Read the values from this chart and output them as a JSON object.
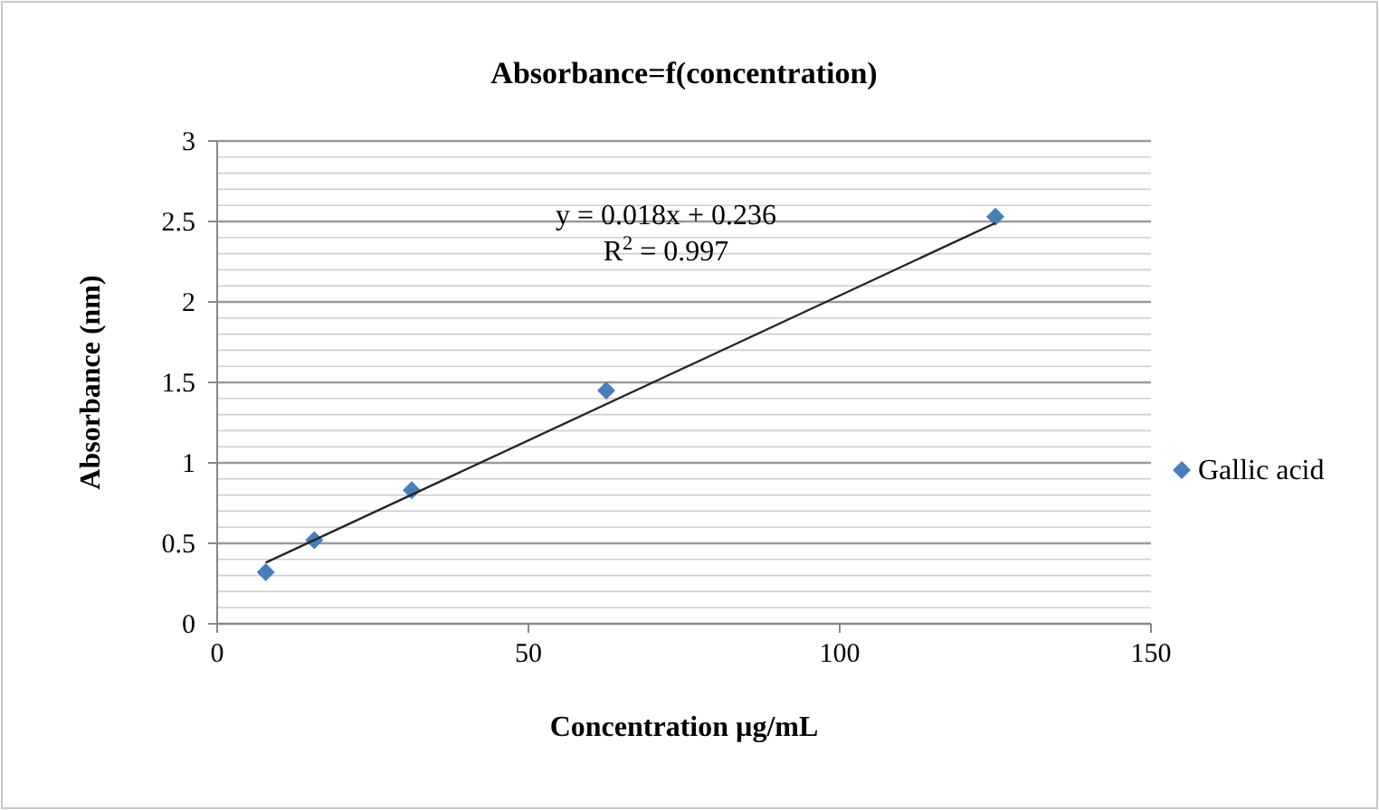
{
  "chart_data": {
    "type": "scatter",
    "title": "Absorbance=f(concentration)",
    "xlabel": "Concentration µg/mL",
    "ylabel": "Absorbance (nm)",
    "series": [
      {
        "name": "Gallic acid",
        "marker": "diamond",
        "color": "#4a7ebb",
        "x": [
          7.8,
          15.6,
          31.25,
          62.5,
          125
        ],
        "values": [
          0.32,
          0.52,
          0.83,
          1.45,
          2.53
        ]
      },
      {
        "type": "line",
        "color": "#262626",
        "x": [
          7.8,
          125
        ],
        "values": [
          0.38,
          2.49
        ]
      }
    ],
    "xlim": [
      0,
      150
    ],
    "xticks": [
      0,
      50,
      100,
      150
    ],
    "ylim": [
      0,
      3
    ],
    "yticks": [
      0,
      {
        "value": 0.1,
        "label": null
      },
      {
        "value": 0.2,
        "label": null
      },
      {
        "value": 0.3,
        "label": null
      },
      {
        "value": 0.4,
        "label": null
      },
      0.5,
      {
        "value": 0.6,
        "label": null
      },
      {
        "value": 0.7,
        "label": null
      },
      {
        "value": 0.8,
        "label": null
      },
      {
        "value": 0.9,
        "label": null
      },
      1,
      {
        "value": 1.1,
        "label": null
      },
      {
        "value": 1.2,
        "label": null
      },
      {
        "value": 1.3,
        "label": null
      },
      {
        "value": 1.4,
        "label": null
      },
      1.5,
      {
        "value": 1.6,
        "label": null
      },
      {
        "value": 1.7,
        "label": null
      },
      {
        "value": 1.8,
        "label": null
      },
      {
        "value": 1.9,
        "label": null
      },
      2,
      {
        "value": 2.1,
        "label": null
      },
      {
        "value": 2.2,
        "label": null
      },
      {
        "value": 2.3,
        "label": null
      },
      {
        "value": 2.4,
        "label": null
      },
      2.5,
      {
        "value": 2.6,
        "label": null
      },
      {
        "value": 2.7,
        "label": null
      },
      {
        "value": 2.8,
        "label": null
      },
      {
        "value": 2.9,
        "label": null
      },
      3
    ],
    "grid": "y",
    "legend": "right",
    "annotations": [
      "y = 0.018x + 0.236",
      "R$^{2}$ = 0.997"
    ]
  }
}
